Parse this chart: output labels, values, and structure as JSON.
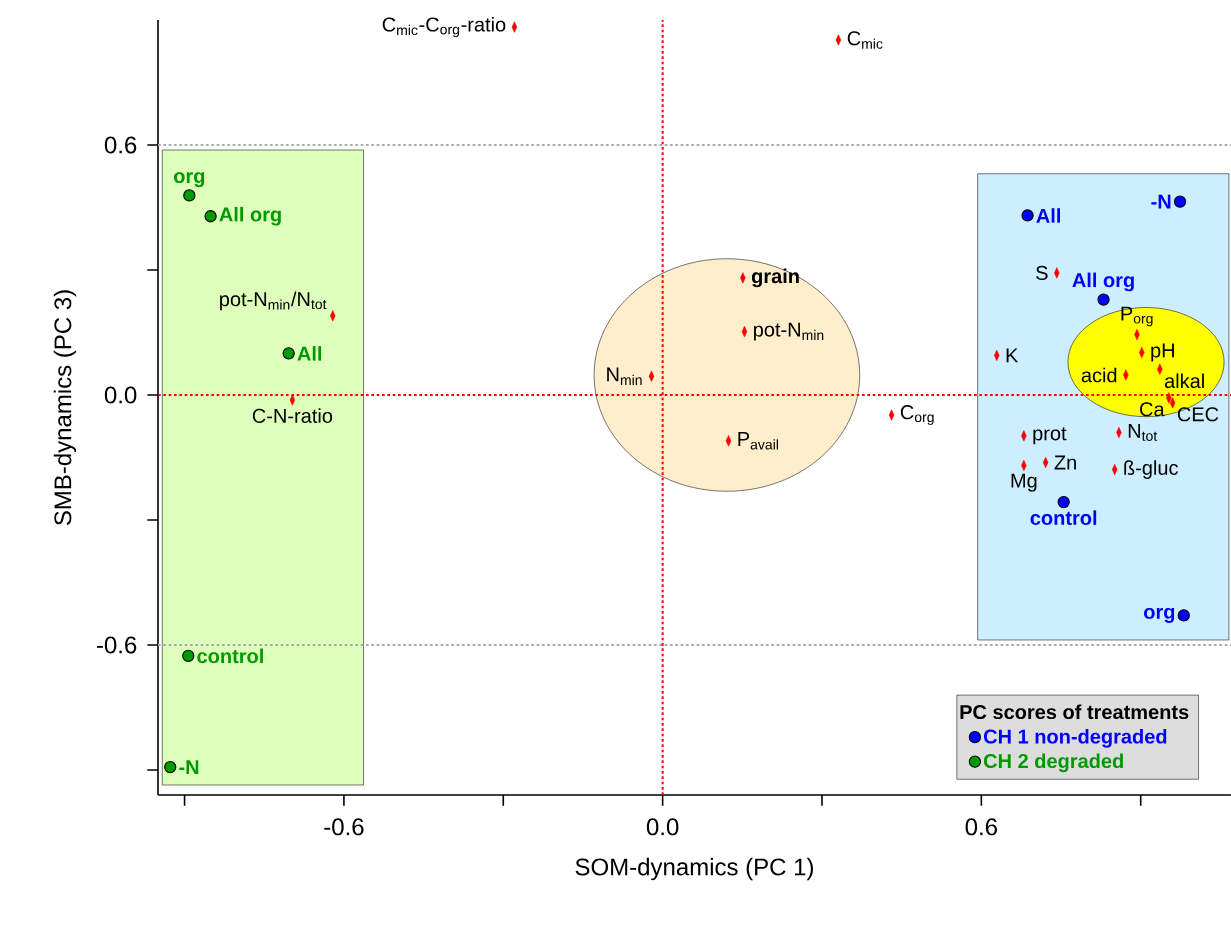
{
  "chart_data": {
    "type": "scatter",
    "xlabel": "SOM-dynamics (PC 1)",
    "ylabel": "SMB-dynamics (PC 3)",
    "legend_title": "PC scores of treatments",
    "legend": "bottom right",
    "xlim": [
      -0.95,
      1.07
    ],
    "ylim": [
      -0.96,
      0.9
    ],
    "xticks": [
      {
        "value": -0.9,
        "label": null
      },
      -0.6,
      {
        "value": -0.3,
        "label": null
      },
      {
        "value": 0,
        "label": "0.0"
      },
      {
        "value": 0.3,
        "label": null
      },
      0.6,
      {
        "value": 0.9,
        "label": null
      }
    ],
    "yticks": [
      {
        "value": -0.9,
        "label": null
      },
      -0.6,
      {
        "value": -0.3,
        "label": null
      },
      {
        "value": 0,
        "label": "0.0"
      },
      {
        "value": 0.3,
        "label": null
      },
      0.6
    ],
    "series": [
      {
        "name": "CH 1 non-degraded",
        "color": "#0000ff",
        "marker": "circle",
        "x": [
          0.974,
          0.687,
          0.83,
          0.755,
          0.981
        ],
        "values": [
          0.464,
          0.431,
          0.229,
          -0.257,
          -0.529
        ]
      },
      {
        "name": "CH 2 degraded",
        "color": "#009900",
        "marker": "circle",
        "x": [
          -0.891,
          -0.851,
          -0.704,
          -0.893,
          -0.927
        ],
        "values": [
          0.479,
          0.429,
          0.1,
          -0.626,
          -0.893
        ]
      },
      {
        "color": "#ff0000",
        "marker": "diamond",
        "x": [
          -0.279,
          0.331,
          -0.621,
          -0.697,
          0.151,
          0.154,
          -0.021,
          0.124,
          0.431,
          0.742,
          0.629,
          0.893,
          0.902,
          0.872,
          0.936,
          0.953,
          0.96,
          0.68,
          0.859,
          0.721,
          0.68,
          0.851
        ],
        "values": [
          0.883,
          0.852,
          0.19,
          -0.012,
          0.281,
          0.152,
          0.045,
          -0.11,
          -0.048,
          0.293,
          0.095,
          0.145,
          0.102,
          0.048,
          0.062,
          -0.007,
          -0.019,
          -0.098,
          -0.09,
          -0.162,
          -0.169,
          -0.179
        ]
      }
    ],
    "annotations": [
      {
        "text": "-N",
        "x": 0.974,
        "y": 0.464
      },
      {
        "text": "All",
        "x": 0.687,
        "y": 0.431
      },
      {
        "text": "All org",
        "x": 0.83,
        "y": 0.229
      },
      {
        "text": "control",
        "x": 0.755,
        "y": -0.257
      },
      {
        "text": "org",
        "x": 0.981,
        "y": -0.529
      },
      {
        "text": "org",
        "x": -0.891,
        "y": 0.479
      },
      {
        "text": "All org",
        "x": -0.851,
        "y": 0.429
      },
      {
        "text": "All",
        "x": -0.704,
        "y": 0.1
      },
      {
        "text": "control",
        "x": -0.893,
        "y": -0.626
      },
      {
        "text": "-N",
        "x": -0.927,
        "y": -0.893
      },
      {
        "text": "C$_{mic}$-C$_{org}$-ratio",
        "x": -0.279,
        "y": 0.883
      },
      {
        "text": "C$_{mic}$",
        "x": 0.331,
        "y": 0.852
      },
      {
        "text": "pot-N$_{min}$/N$_{tot}$",
        "x": -0.621,
        "y": 0.19
      },
      {
        "text": "C-N-ratio",
        "x": -0.697,
        "y": -0.012
      },
      {
        "text": "**grain**",
        "x": 0.151,
        "y": 0.281
      },
      {
        "text": "pot-N$_{min}$",
        "x": 0.154,
        "y": 0.152
      },
      {
        "text": "N$_{min}$",
        "x": -0.021,
        "y": 0.045
      },
      {
        "text": "P$_{avail}$",
        "x": 0.124,
        "y": -0.11
      },
      {
        "text": "C$_{org}$",
        "x": 0.431,
        "y": -0.048
      },
      {
        "text": "S",
        "x": 0.742,
        "y": 0.293
      },
      {
        "text": "K",
        "x": 0.629,
        "y": 0.095
      },
      {
        "text": "P$_{org}$",
        "x": 0.893,
        "y": 0.145
      },
      {
        "text": "pH",
        "x": 0.902,
        "y": 0.102
      },
      {
        "text": "acid",
        "x": 0.872,
        "y": 0.048
      },
      {
        "text": "alkal",
        "x": 0.936,
        "y": 0.062
      },
      {
        "text": "Ca",
        "x": 0.953,
        "y": -0.007
      },
      {
        "text": "CEC",
        "x": 0.96,
        "y": -0.019
      },
      {
        "text": "prot",
        "x": 0.68,
        "y": -0.098
      },
      {
        "text": "N$_{tot}$",
        "x": 0.859,
        "y": -0.09
      },
      {
        "text": "Zn",
        "x": 0.721,
        "y": -0.162
      },
      {
        "text": "Mg",
        "x": 0.68,
        "y": -0.169
      },
      {
        "text": "ß-gluc",
        "x": 0.851,
        "y": -0.179
      }
    ],
    "ref_lines": [
      {
        "axis": "y",
        "value": 0.6,
        "color": "#aaaaaa",
        "line_style": "dotted"
      },
      {
        "axis": "y",
        "value": -0.6,
        "color": "#aaaaaa",
        "line_style": "dotted"
      },
      {
        "axis": "x",
        "value": 0,
        "color": "#ff0000",
        "line_style": "dotted"
      },
      {
        "axis": "y",
        "value": 0,
        "color": "#ff0000",
        "line_style": "dotted"
      }
    ]
  }
}
